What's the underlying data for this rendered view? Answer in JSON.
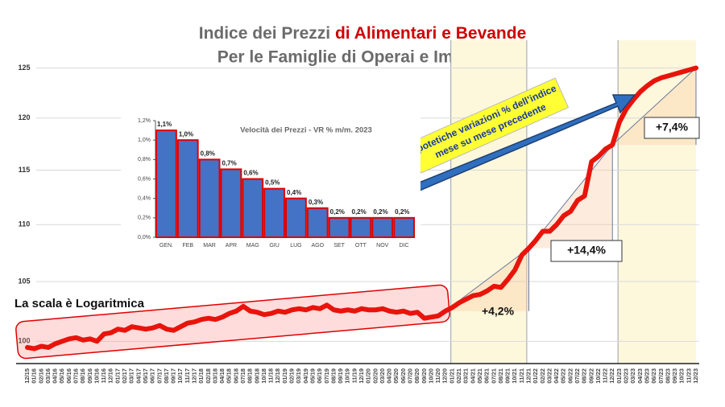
{
  "chart_data": [
    {
      "type": "line",
      "title": "Indice dei  Prezzi",
      "title_highlight": "di Alimentari e Bevande",
      "subtitle": "Per le  Famiglie di Operai e Impiegati",
      "log_scale": true,
      "grid": true,
      "ylim": [
        98.2,
        126.2
      ],
      "yticks": [
        100,
        105,
        110,
        115,
        120,
        125
      ],
      "series": [
        {
          "name": "Indice",
          "color": "#e8140c",
          "values": [
            99.5,
            99.4,
            99.6,
            99.5,
            99.8,
            100.0,
            100.2,
            100.3,
            100.1,
            100.2,
            100.0,
            100.6,
            100.7,
            101.0,
            100.9,
            101.2,
            101.1,
            101.0,
            101.1,
            101.3,
            101.0,
            100.9,
            101.2,
            101.5,
            101.6,
            101.8,
            101.9,
            101.8,
            102.0,
            102.3,
            102.5,
            102.9,
            102.5,
            102.4,
            102.2,
            102.3,
            102.5,
            102.4,
            102.6,
            102.7,
            102.6,
            102.8,
            102.7,
            103.0,
            102.6,
            102.5,
            102.6,
            102.5,
            102.7,
            102.6,
            102.6,
            102.7,
            102.5,
            102.4,
            102.5,
            102.3,
            102.4,
            101.9,
            102.0,
            102.1,
            102.5,
            102.8,
            103.2,
            103.5,
            103.8,
            103.9,
            104.2,
            104.6,
            104.5,
            105.2,
            106.0,
            107.3,
            107.9,
            108.6,
            109.4,
            109.4,
            110.0,
            110.8,
            111.2,
            112.2,
            112.6,
            115.8,
            116.3,
            117.0,
            117.4,
            119.6,
            120.9,
            121.8,
            122.6,
            123.2,
            123.7,
            124.0,
            124.2,
            124.4,
            124.6,
            124.8,
            125.0
          ]
        }
      ],
      "categories": [
        "12/15",
        "01/16",
        "02/16",
        "03/16",
        "04/16",
        "05/16",
        "06/16",
        "07/16",
        "08/16",
        "09/16",
        "10/16",
        "11/16",
        "12/16",
        "01/17",
        "02/17",
        "03/17",
        "04/17",
        "05/17",
        "06/17",
        "07/17",
        "08/17",
        "09/17",
        "10/17",
        "11/17",
        "12/17",
        "01/18",
        "02/18",
        "03/18",
        "04/18",
        "05/18",
        "06/18",
        "07/18",
        "08/18",
        "09/18",
        "10/18",
        "11/18",
        "12/18",
        "01/19",
        "02/19",
        "03/19",
        "04/19",
        "05/19",
        "06/19",
        "07/19",
        "08/19",
        "09/19",
        "10/19",
        "11/19",
        "12/19",
        "01/20",
        "02/20",
        "03/20",
        "04/20",
        "05/20",
        "06/20",
        "07/20",
        "08/20",
        "09/20",
        "10/20",
        "11/20",
        "12/20",
        "01/21",
        "02/21",
        "03/21",
        "04/21",
        "05/21",
        "06/21",
        "07/21",
        "08/21",
        "09/21",
        "10/21",
        "11/21",
        "12/21",
        "01/22",
        "02/22",
        "03/22",
        "04/22",
        "05/22",
        "06/22",
        "07/22",
        "08/22",
        "09/22",
        "10/22",
        "11/22",
        "12/22",
        "01/23",
        "02/23",
        "03/23",
        "04/23",
        "05/23",
        "06/23",
        "07/23",
        "08/23",
        "09/23",
        "10/23",
        "11/23",
        "12/23"
      ],
      "annotations": [
        "La scala è Logaritmica",
        "+4,2%",
        "+14,4%",
        "+7,4%",
        "Ipotetiche variazioni % dell’indice",
        "mese su mese precedente"
      ]
    },
    {
      "type": "bar",
      "title": "Velocità dei Prezzi - VR % m/m. 2023",
      "categories": [
        "GEN.",
        "FEB",
        "MAR",
        "APR",
        "MAG",
        "GIU",
        "LUG",
        "AGO",
        "SET",
        "OTT",
        "NOV",
        "DIC"
      ],
      "values": [
        1.1,
        1.0,
        0.8,
        0.7,
        0.6,
        0.5,
        0.4,
        0.3,
        0.2,
        0.2,
        0.2,
        0.2
      ],
      "value_labels": [
        "1,1%",
        "1,0%",
        "0,8%",
        "0,7%",
        "0,6%",
        "0,5%",
        "0,4%",
        "0,3%",
        "0,2%",
        "0,2%",
        "0,2%",
        "0,2%"
      ],
      "color": "#4472c4",
      "edge_color": "#e00000",
      "ylim": [
        0,
        1.2
      ],
      "yticks": [
        {
          "value": 0,
          "label": "0,0%"
        },
        {
          "value": 0.2,
          "label": "0,2%"
        },
        {
          "value": 0.4,
          "label": "0,4%"
        },
        {
          "value": 0.6,
          "label": "0,6%"
        },
        {
          "value": 0.8,
          "label": "0,8%"
        },
        {
          "value": 1.0,
          "label": "1,0%"
        },
        {
          "value": 1.2,
          "label": "1,2%"
        }
      ]
    }
  ]
}
